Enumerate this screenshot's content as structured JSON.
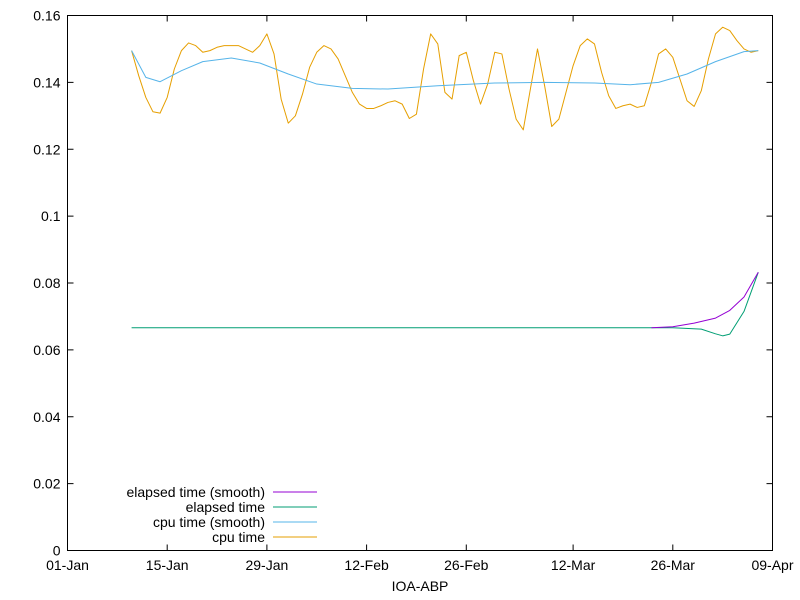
{
  "chart_data": {
    "type": "line",
    "title": "",
    "xlabel": "IOA-ABP",
    "ylabel": "",
    "xlim": [
      "2024-01-01",
      "2024-04-09"
    ],
    "ylim": [
      0,
      0.16
    ],
    "x_ticks": [
      {
        "date": "2024-01-01",
        "label": "01-Jan"
      },
      {
        "date": "2024-01-15",
        "label": "15-Jan"
      },
      {
        "date": "2024-01-29",
        "label": "29-Jan"
      },
      {
        "date": "2024-02-12",
        "label": "12-Feb"
      },
      {
        "date": "2024-02-26",
        "label": "26-Feb"
      },
      {
        "date": "2024-03-12",
        "label": "12-Mar"
      },
      {
        "date": "2024-03-26",
        "label": "26-Mar"
      },
      {
        "date": "2024-04-09",
        "label": "09-Apr"
      }
    ],
    "y_ticks": [
      {
        "value": 0,
        "label": "0"
      },
      {
        "value": 0.02,
        "label": "0.02"
      },
      {
        "value": 0.04,
        "label": "0.04"
      },
      {
        "value": 0.06,
        "label": "0.06"
      },
      {
        "value": 0.08,
        "label": "0.08"
      },
      {
        "value": 0.1,
        "label": "0.1"
      },
      {
        "value": 0.12,
        "label": "0.12"
      },
      {
        "value": 0.14,
        "label": "0.14"
      },
      {
        "value": 0.16,
        "label": "0.16"
      }
    ],
    "grid": false,
    "legend_position": "bottom-left",
    "series": [
      {
        "name": "elapsed time (smooth)",
        "color": "#9400d3",
        "points": [
          [
            "2024-03-23",
            0.0666
          ],
          [
            "2024-03-26",
            0.0669
          ],
          [
            "2024-03-29",
            0.068
          ],
          [
            "2024-04-01",
            0.0695
          ],
          [
            "2024-04-03",
            0.0718
          ],
          [
            "2024-04-05",
            0.0758
          ],
          [
            "2024-04-07",
            0.0832
          ]
        ]
      },
      {
        "name": "elapsed time",
        "color": "#009e73",
        "points": [
          [
            "2024-01-10",
            0.0666
          ],
          [
            "2024-03-26",
            0.0666
          ],
          [
            "2024-03-30",
            0.0662
          ],
          [
            "2024-04-01",
            0.0648
          ],
          [
            "2024-04-02",
            0.0642
          ],
          [
            "2024-04-03",
            0.0647
          ],
          [
            "2024-04-05",
            0.0715
          ],
          [
            "2024-04-07",
            0.0832
          ]
        ]
      },
      {
        "name": "cpu time (smooth)",
        "color": "#56b4e9",
        "points": [
          [
            "2024-01-10",
            0.1495
          ],
          [
            "2024-01-12",
            0.1415
          ],
          [
            "2024-01-14",
            0.1402
          ],
          [
            "2024-01-17",
            0.1435
          ],
          [
            "2024-01-20",
            0.1462
          ],
          [
            "2024-01-24",
            0.1473
          ],
          [
            "2024-01-28",
            0.1458
          ],
          [
            "2024-02-01",
            0.1425
          ],
          [
            "2024-02-05",
            0.1395
          ],
          [
            "2024-02-10",
            0.1382
          ],
          [
            "2024-02-15",
            0.138
          ],
          [
            "2024-02-22",
            0.139
          ],
          [
            "2024-03-01",
            0.1398
          ],
          [
            "2024-03-08",
            0.14
          ],
          [
            "2024-03-15",
            0.1398
          ],
          [
            "2024-03-20",
            0.1393
          ],
          [
            "2024-03-24",
            0.14
          ],
          [
            "2024-03-28",
            0.1425
          ],
          [
            "2024-04-01",
            0.1462
          ],
          [
            "2024-04-05",
            0.1492
          ],
          [
            "2024-04-07",
            0.1495
          ]
        ]
      },
      {
        "name": "cpu time",
        "color": "#e69f00",
        "points": [
          [
            "2024-01-10",
            0.1495
          ],
          [
            "2024-01-11",
            0.142
          ],
          [
            "2024-01-12",
            0.1355
          ],
          [
            "2024-01-13",
            0.1312
          ],
          [
            "2024-01-14",
            0.1308
          ],
          [
            "2024-01-15",
            0.1355
          ],
          [
            "2024-01-16",
            0.144
          ],
          [
            "2024-01-17",
            0.1495
          ],
          [
            "2024-01-18",
            0.1518
          ],
          [
            "2024-01-19",
            0.151
          ],
          [
            "2024-01-20",
            0.149
          ],
          [
            "2024-01-21",
            0.1495
          ],
          [
            "2024-01-22",
            0.1505
          ],
          [
            "2024-01-23",
            0.151
          ],
          [
            "2024-01-25",
            0.151
          ],
          [
            "2024-01-26",
            0.15
          ],
          [
            "2024-01-27",
            0.149
          ],
          [
            "2024-01-28",
            0.151
          ],
          [
            "2024-01-29",
            0.1545
          ],
          [
            "2024-01-30",
            0.1485
          ],
          [
            "2024-01-31",
            0.135
          ],
          [
            "2024-02-01",
            0.1278
          ],
          [
            "2024-02-02",
            0.13
          ],
          [
            "2024-02-03",
            0.1365
          ],
          [
            "2024-02-04",
            0.1445
          ],
          [
            "2024-02-05",
            0.149
          ],
          [
            "2024-02-06",
            0.151
          ],
          [
            "2024-02-07",
            0.15
          ],
          [
            "2024-02-08",
            0.147
          ],
          [
            "2024-02-09",
            0.142
          ],
          [
            "2024-02-10",
            0.137
          ],
          [
            "2024-02-11",
            0.1335
          ],
          [
            "2024-02-12",
            0.1322
          ],
          [
            "2024-02-13",
            0.1322
          ],
          [
            "2024-02-14",
            0.133
          ],
          [
            "2024-02-15",
            0.134
          ],
          [
            "2024-02-16",
            0.1345
          ],
          [
            "2024-02-17",
            0.1335
          ],
          [
            "2024-02-18",
            0.1292
          ],
          [
            "2024-02-19",
            0.1305
          ],
          [
            "2024-02-20",
            0.144
          ],
          [
            "2024-02-21",
            0.1545
          ],
          [
            "2024-02-22",
            0.1515
          ],
          [
            "2024-02-23",
            0.137
          ],
          [
            "2024-02-24",
            0.135
          ],
          [
            "2024-02-25",
            0.148
          ],
          [
            "2024-02-26",
            0.149
          ],
          [
            "2024-02-27",
            0.1405
          ],
          [
            "2024-02-28",
            0.1335
          ],
          [
            "2024-02-29",
            0.1395
          ],
          [
            "2024-03-01",
            0.149
          ],
          [
            "2024-03-02",
            0.1485
          ],
          [
            "2024-03-03",
            0.138
          ],
          [
            "2024-03-04",
            0.129
          ],
          [
            "2024-03-05",
            0.1258
          ],
          [
            "2024-03-06",
            0.138
          ],
          [
            "2024-03-07",
            0.15
          ],
          [
            "2024-03-08",
            0.139
          ],
          [
            "2024-03-09",
            0.1268
          ],
          [
            "2024-03-10",
            0.129
          ],
          [
            "2024-03-11",
            0.137
          ],
          [
            "2024-03-12",
            0.145
          ],
          [
            "2024-03-13",
            0.151
          ],
          [
            "2024-03-14",
            0.153
          ],
          [
            "2024-03-15",
            0.1515
          ],
          [
            "2024-03-16",
            0.143
          ],
          [
            "2024-03-17",
            0.136
          ],
          [
            "2024-03-18",
            0.1322
          ],
          [
            "2024-03-19",
            0.133
          ],
          [
            "2024-03-20",
            0.1335
          ],
          [
            "2024-03-21",
            0.1325
          ],
          [
            "2024-03-22",
            0.133
          ],
          [
            "2024-03-23",
            0.14
          ],
          [
            "2024-03-24",
            0.1485
          ],
          [
            "2024-03-25",
            0.15
          ],
          [
            "2024-03-26",
            0.1475
          ],
          [
            "2024-03-27",
            0.141
          ],
          [
            "2024-03-28",
            0.1345
          ],
          [
            "2024-03-29",
            0.1328
          ],
          [
            "2024-03-30",
            0.1375
          ],
          [
            "2024-03-31",
            0.147
          ],
          [
            "2024-04-01",
            0.1545
          ],
          [
            "2024-04-02",
            0.1565
          ],
          [
            "2024-04-03",
            0.1555
          ],
          [
            "2024-04-04",
            0.1525
          ],
          [
            "2024-04-05",
            0.15
          ],
          [
            "2024-04-06",
            0.149
          ],
          [
            "2024-04-07",
            0.1495
          ]
        ]
      }
    ]
  }
}
